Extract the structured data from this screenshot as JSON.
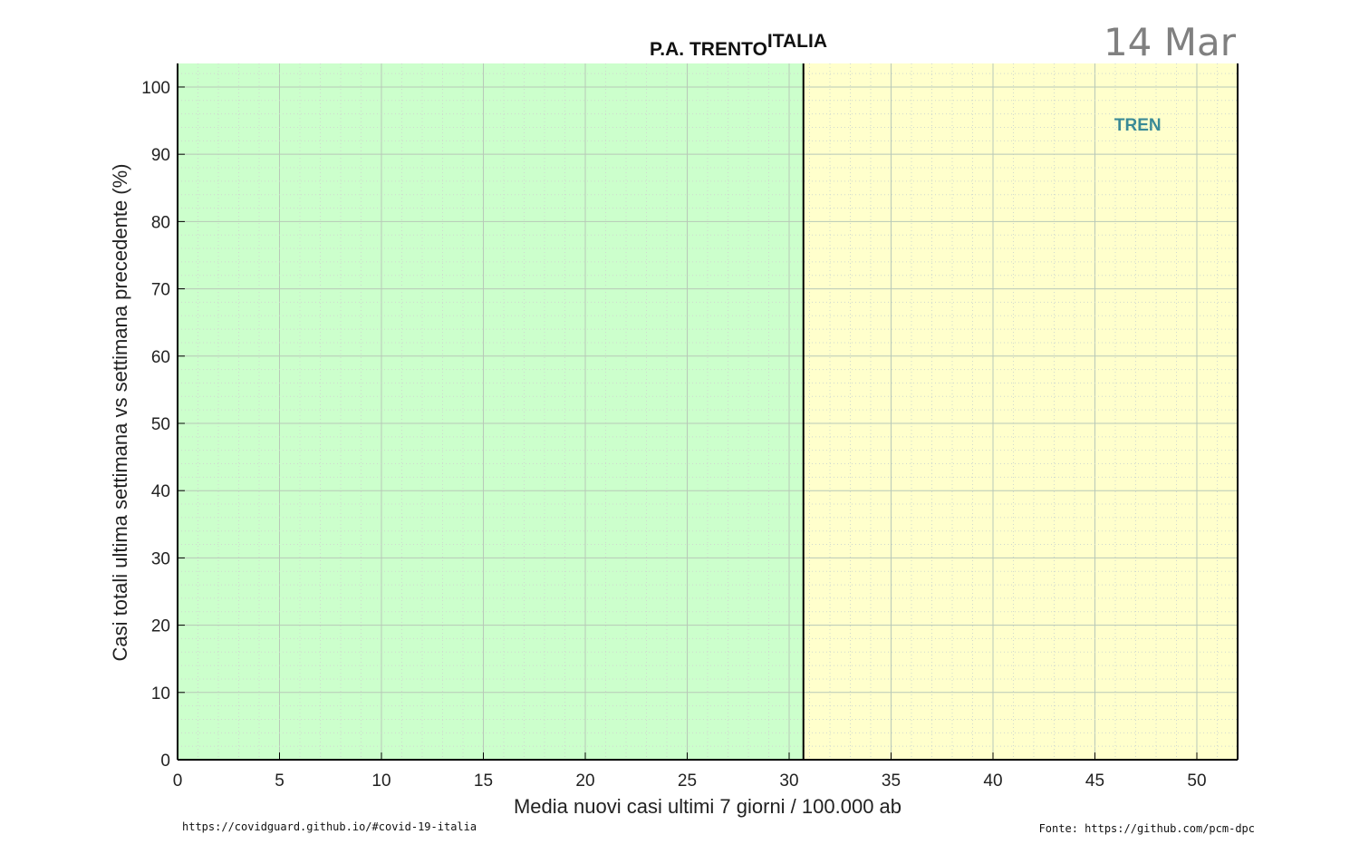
{
  "chart_data": {
    "type": "scatter",
    "title": "P.A. TRENTO",
    "title_superscript": "ITALIA",
    "date": "14 Mar",
    "xlabel": "Media nuovi casi ultimi 7 giorni / 100.000 ab",
    "ylabel": "Casi totali ultima settimana vs settimana precedente (%)",
    "xlim": [
      0,
      52
    ],
    "ylim": [
      0,
      103.5
    ],
    "x_ticks": [
      0,
      5,
      10,
      15,
      20,
      25,
      30,
      35,
      40,
      45,
      50
    ],
    "y_ticks": [
      0,
      10,
      20,
      30,
      40,
      50,
      60,
      70,
      80,
      90,
      100
    ],
    "grid": true,
    "regions": [
      {
        "from": 0,
        "to": 30.7,
        "color": "#ccffcc"
      },
      {
        "from": 30.7,
        "to": 52,
        "color": "#ffffcc"
      }
    ],
    "threshold_x": 30.7,
    "annotations": [
      {
        "text": "TREN",
        "x": 47.1,
        "y": 93.5,
        "color": "#3a8a96"
      }
    ]
  },
  "footer": {
    "left": "https://covidguard.github.io/#covid-19-italia",
    "right": "Fonte: https://github.com/pcm-dpc"
  }
}
